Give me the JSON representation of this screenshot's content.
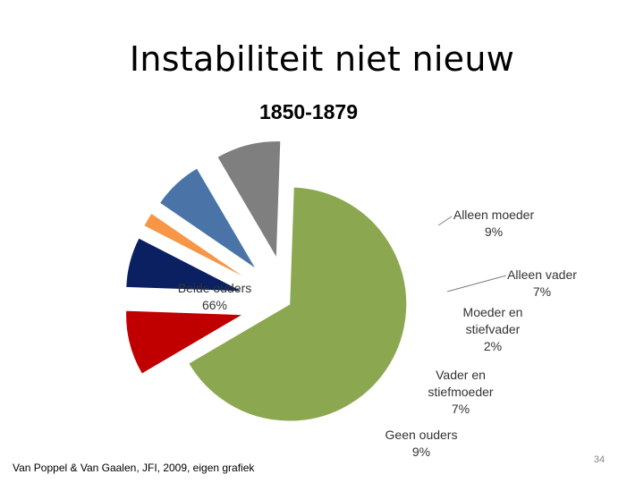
{
  "slide": {
    "title": "Instabiliteit niet nieuw",
    "footer": "Van Poppel & Van Gaalen, JFI, 2009, eigen grafiek",
    "page_number": "34"
  },
  "chart_data": {
    "type": "pie",
    "title": "1850-1879",
    "slices": [
      {
        "name": "Beide ouders",
        "value": 66,
        "label": "66%",
        "color": "#8BA851"
      },
      {
        "name": "Alleen moeder",
        "value": 9,
        "label": "9%",
        "color": "#C00000"
      },
      {
        "name": "Alleen vader",
        "value": 7,
        "label": "7%",
        "color": "#0A2060"
      },
      {
        "name": "Moeder en stiefvader",
        "value": 2,
        "label": "2%",
        "color": "#F79646"
      },
      {
        "name": "Vader en stiefmoeder",
        "value": 7,
        "label": "7%",
        "color": "#4A74A8"
      },
      {
        "name": "Geen ouders",
        "value": 9,
        "label": "9%",
        "color": "#7F7F7F"
      }
    ],
    "label_lines": [
      [
        "Beide ouders",
        "66%"
      ],
      [
        "Alleen moeder",
        "9%"
      ],
      [
        "Alleen vader",
        "7%"
      ],
      [
        "Moeder en",
        "stiefvader",
        "2%"
      ],
      [
        "Vader en",
        "stiefmoeder",
        "7%"
      ],
      [
        "Geen ouders",
        "9%"
      ]
    ],
    "exploded": true
  }
}
